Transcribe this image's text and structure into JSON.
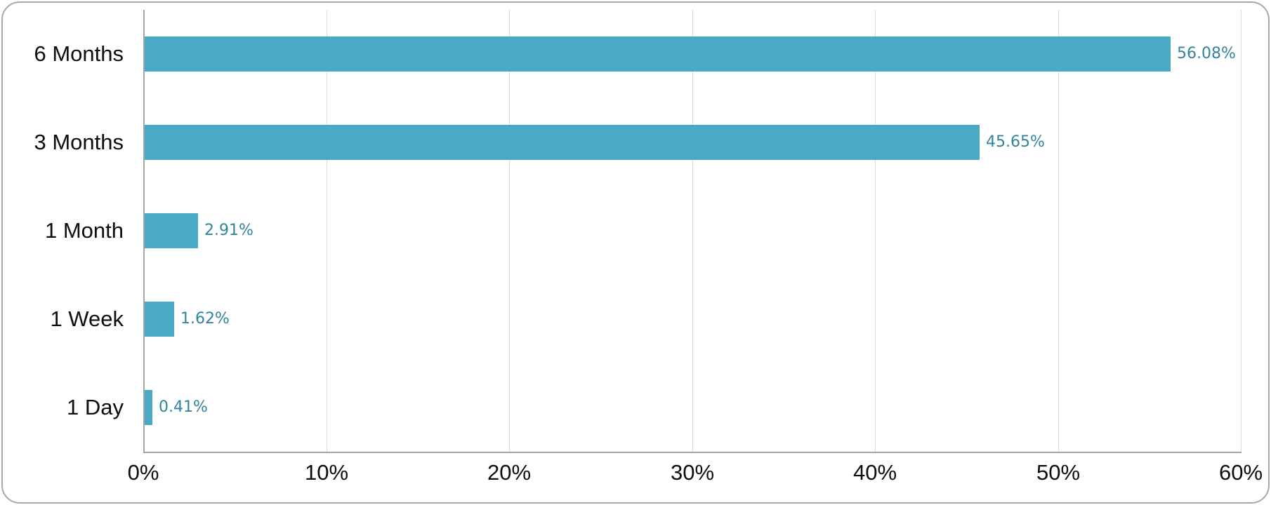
{
  "chart_data": {
    "type": "bar",
    "orientation": "horizontal",
    "title": "",
    "xlabel": "",
    "ylabel": "",
    "categories": [
      "6 Months",
      "3 Months",
      "1 Month",
      "1 Week",
      "1 Day"
    ],
    "values": [
      56.08,
      45.65,
      2.91,
      1.62,
      0.41
    ],
    "data_labels": [
      "56.08%",
      "45.65%",
      "2.91%",
      "1.62%",
      "0.41%"
    ],
    "xlim": [
      0,
      60
    ],
    "x_tick_values": [
      0,
      10,
      20,
      30,
      40,
      50,
      60
    ],
    "x_tick_labels": [
      "0%",
      "10%",
      "20%",
      "30%",
      "40%",
      "50%",
      "60%"
    ],
    "grid": "vertical-gridlines-on",
    "legend": "none",
    "colors": {
      "bar": "#4aa9c5",
      "data_label": "#31849b",
      "gridline": "#d9d9d9",
      "axis": "#a6a6a6",
      "tick_text": "#0d0d0d",
      "category_text": "#0d0d0d",
      "card_border": "#a8a8a8",
      "background": "#ffffff"
    }
  }
}
